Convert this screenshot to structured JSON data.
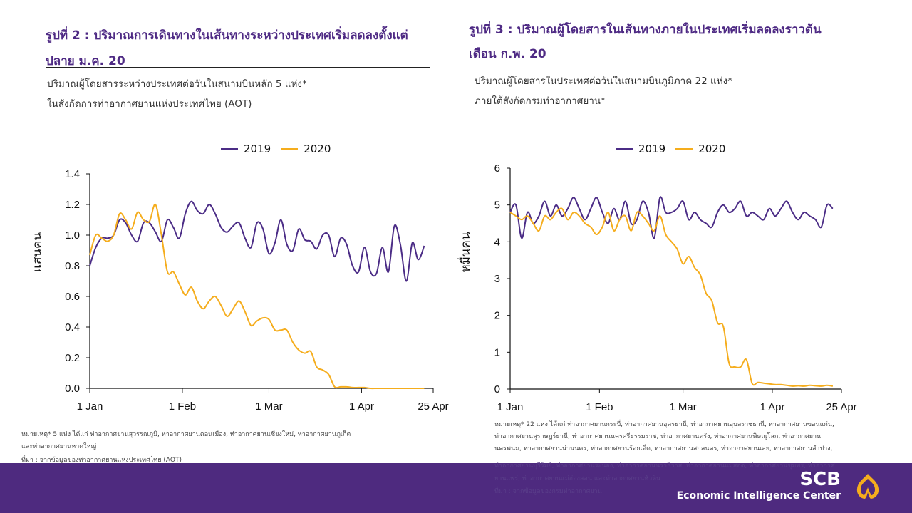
{
  "colors": {
    "series2019": "#4b2c86",
    "series2020": "#f5ad1d",
    "title": "#4e2a84",
    "band": "#4e2a7f",
    "logo": "#f5ad1d"
  },
  "left": {
    "title_line1": "รูปที่ 2 : ปริมาณการเดินทางในเส้นทางระหว่างประเทศเริ่มลดลงตั้งแต่",
    "title_line2": "ปลาย ม.ค. 20",
    "subtitle_line1": "ปริมาณผู้โดยสารระหว่างประเทศต่อวันในสนามบินหลัก 5 แห่ง*",
    "subtitle_line2": "ในสังกัดการท่าอากาศยานแห่งประเทศไทย  (AOT)",
    "note_line1": "หมายเหตุ* 5 แห่ง ได้แก่ ท่าอากาศยานสุวรรณภูมิ, ท่าอากาศยานดอนเมือง, ท่าอากาศยานเชียงใหม่, ท่าอากาศยานภูเก็ต",
    "note_line2": "และท่าอากาศยานหาดใหญ่",
    "source": "ที่มา : จากข้อมูลของท่าอากาศยานแห่งประเทศไทย (AOT)"
  },
  "right": {
    "title_line1": "รูปที่ 3 : ปริมาณผู้โดยสารในเส้นทางภายในประเทศเริ่มลดลงราวต้น",
    "title_line2": "เดือน ก.พ. 20",
    "subtitle_line1": "ปริมาณผู้โดยสารในประเทศต่อวันในสนามบินภูมิภาค 22 แห่ง*",
    "subtitle_line2": "ภายใต้สังกัดกรมท่าอากาศยาน*",
    "note_line1": "หมายเหตุ* 22 แห่ง ได้แก่ ท่าอากาศยานกระบี่, ท่าอากาศยานอุดรธานี, ท่าอากาศยานอุบลราชธานี, ท่าอากาศยานขอนแก่น,",
    "note_line2": "ท่าอากาศยานสุราษฎร์ธานี, ท่าอากาศยานนครศรีธรรมราช, ท่าอากาศยานตรัง, ท่าอากาศยานพิษณุโลก, ท่าอากาศยาน",
    "note_line3": "นครพนม, ท่าอากาศยานน่านนคร, ท่าอากาศยานร้อยเอ็ด, ท่าอากาศยานสกลนคร, ท่าอากาศยานเลย, ท่าอากาศยานลำปาง,",
    "note_line4": "ท่าอากาศยานบุรีรัมย์, ท่าอากาศยานระนอง, ท่าอากาศยานนราธิวาส, ท่าอากาศยานแม่สอด, ท่าอากาศยานชุมพร, ท่าอากาศ",
    "note_line5": "ยานแพร่, ท่าอากาศยานแม่ฮ่องสอน และท่าอากาศยานหัวหิน",
    "source": "ที่มา :  จากข้อมูลของกรมท่าอากาศยาน"
  },
  "brand": {
    "name": "SCB",
    "tagline": "Economic Intelligence Center",
    "logo_icon": "scb-bodhi-leaf-icon"
  },
  "chart_data": [
    {
      "type": "line",
      "title": "รูปที่ 2 : ปริมาณการเดินทางในเส้นทางระหว่างประเทศเริ่มลดลงตั้งแต่ปลาย ม.ค. 20",
      "xlabel": "",
      "ylabel": "แสนคน",
      "x_unit": "day of year (0 = 1 Jan)",
      "xlim": [
        0,
        115
      ],
      "ylim": [
        0,
        1.4
      ],
      "yticks": [
        0.0,
        0.2,
        0.4,
        0.6,
        0.8,
        1.0,
        1.2,
        1.4
      ],
      "ytick_labels": [
        "0.0",
        "0.2",
        "0.4",
        "0.6",
        "0.8",
        "1.0",
        "1.2",
        "1.4"
      ],
      "xticks": [
        0,
        31,
        60,
        91,
        115
      ],
      "xtick_labels": [
        "1 Jan",
        "1 Feb",
        "1 Mar",
        "1 Apr",
        "25 Apr"
      ],
      "legend": [
        "2019",
        "2020"
      ],
      "legend_position": "top-center",
      "grid": false,
      "x": [
        0,
        2,
        4,
        6,
        8,
        10,
        12,
        14,
        16,
        18,
        20,
        22,
        24,
        26,
        28,
        30,
        32,
        34,
        36,
        38,
        40,
        42,
        44,
        46,
        48,
        50,
        52,
        54,
        56,
        58,
        60,
        62,
        64,
        66,
        68,
        70,
        72,
        74,
        76,
        78,
        80,
        82,
        84,
        86,
        88,
        90,
        92,
        94,
        96,
        98,
        100,
        102,
        104,
        106,
        108,
        110,
        112
      ],
      "series": [
        {
          "name": "2019",
          "values": [
            0.8,
            0.92,
            0.98,
            0.98,
            1.0,
            1.1,
            1.08,
            1.0,
            0.96,
            1.08,
            1.08,
            1.02,
            0.96,
            1.1,
            1.05,
            0.98,
            1.14,
            1.22,
            1.16,
            1.14,
            1.2,
            1.14,
            1.05,
            1.02,
            1.06,
            1.08,
            0.98,
            0.92,
            1.08,
            1.04,
            0.88,
            0.95,
            1.1,
            0.94,
            0.9,
            1.04,
            0.97,
            0.96,
            0.91,
            1.0,
            1.0,
            0.86,
            0.98,
            0.94,
            0.8,
            0.76,
            0.92,
            0.76,
            0.75,
            0.92,
            0.76,
            1.06,
            0.94,
            0.7,
            0.95,
            0.84,
            0.93
          ]
        },
        {
          "name": "2020",
          "values": [
            0.87,
            1.0,
            0.98,
            0.96,
            1.0,
            1.14,
            1.1,
            1.04,
            1.15,
            1.1,
            1.09,
            1.2,
            1.0,
            0.76,
            0.76,
            0.68,
            0.61,
            0.66,
            0.57,
            0.52,
            0.57,
            0.6,
            0.54,
            0.47,
            0.52,
            0.57,
            0.5,
            0.41,
            0.44,
            0.46,
            0.45,
            0.38,
            0.38,
            0.38,
            0.3,
            0.25,
            0.23,
            0.24,
            0.14,
            0.12,
            0.09,
            0.01,
            0.01,
            0.01,
            0.005,
            0.005,
            0.005,
            0.0,
            0.0,
            0.0,
            0.0,
            0.0,
            0.0,
            0.0,
            0.0,
            0.0,
            0.0
          ]
        }
      ]
    },
    {
      "type": "line",
      "title": "รูปที่ 3 : ปริมาณผู้โดยสารในเส้นทางภายในประเทศเริ่มลดลงราวต้นเดือน ก.พ. 20",
      "xlabel": "",
      "ylabel": "หมื่นคน",
      "x_unit": "day of year (0 = 1 Jan)",
      "xlim": [
        0,
        115
      ],
      "ylim": [
        0,
        6
      ],
      "yticks": [
        0,
        1,
        2,
        3,
        4,
        5,
        6
      ],
      "ytick_labels": [
        "0",
        "1",
        "2",
        "3",
        "4",
        "5",
        "6"
      ],
      "xticks": [
        0,
        31,
        60,
        91,
        115
      ],
      "xtick_labels": [
        "1 Jan",
        "1 Feb",
        "1 Mar",
        "1 Apr",
        "25 Apr"
      ],
      "legend": [
        "2019",
        "2020"
      ],
      "legend_position": "top-center",
      "grid": false,
      "x": [
        0,
        2,
        4,
        6,
        8,
        10,
        12,
        14,
        16,
        18,
        20,
        22,
        24,
        26,
        28,
        30,
        32,
        34,
        36,
        38,
        40,
        42,
        44,
        46,
        48,
        50,
        52,
        54,
        56,
        58,
        60,
        62,
        64,
        66,
        68,
        70,
        72,
        74,
        76,
        78,
        80,
        82,
        84,
        86,
        88,
        90,
        92,
        94,
        96,
        98,
        100,
        102,
        104,
        106,
        108,
        110,
        112
      ],
      "series": [
        {
          "name": "2019",
          "values": [
            4.8,
            5.0,
            4.1,
            4.8,
            4.5,
            4.7,
            5.1,
            4.7,
            5.0,
            4.7,
            4.9,
            5.2,
            4.9,
            4.6,
            4.9,
            5.2,
            4.8,
            4.5,
            4.9,
            4.6,
            5.1,
            4.5,
            4.6,
            5.1,
            4.8,
            4.1,
            5.2,
            4.8,
            4.8,
            4.9,
            5.1,
            4.6,
            4.8,
            4.6,
            4.5,
            4.4,
            4.8,
            5.0,
            4.8,
            4.9,
            5.1,
            4.7,
            4.8,
            4.7,
            4.6,
            4.9,
            4.7,
            4.9,
            5.1,
            4.8,
            4.6,
            4.8,
            4.7,
            4.6,
            4.4,
            5.0,
            4.9
          ]
        },
        {
          "name": "2020",
          "values": [
            4.8,
            4.7,
            4.6,
            4.7,
            4.5,
            4.3,
            4.7,
            4.6,
            4.8,
            4.9,
            4.6,
            4.8,
            4.7,
            4.5,
            4.4,
            4.2,
            4.4,
            4.8,
            4.3,
            4.6,
            4.7,
            4.3,
            4.8,
            4.7,
            4.5,
            4.3,
            4.7,
            4.2,
            4.0,
            3.8,
            3.4,
            3.6,
            3.3,
            3.1,
            2.6,
            2.4,
            1.8,
            1.7,
            0.7,
            0.6,
            0.6,
            0.8,
            0.15,
            0.18,
            0.16,
            0.14,
            0.12,
            0.12,
            0.1,
            0.08,
            0.09,
            0.08,
            0.1,
            0.09,
            0.08,
            0.1,
            0.08
          ]
        }
      ]
    }
  ]
}
